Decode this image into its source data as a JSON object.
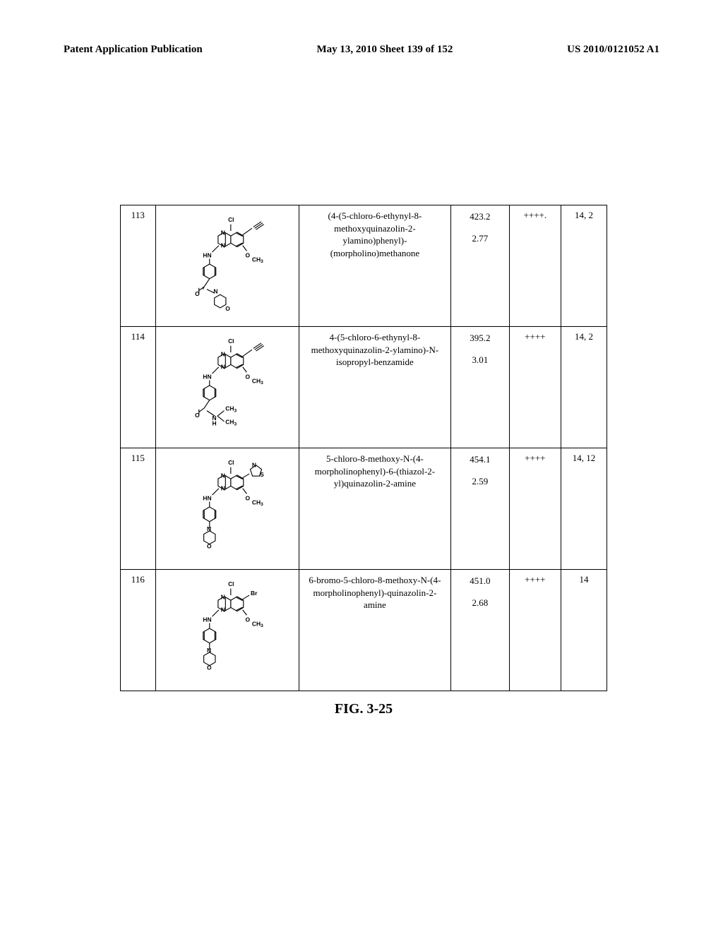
{
  "header": {
    "left": "Patent Application Publication",
    "mid": "May 13, 2010  Sheet 139 of 152",
    "right": "US 2010/0121052 A1"
  },
  "table": {
    "rows": [
      {
        "id": "113",
        "name": "(4-(5-chloro-6-ethynyl-8-methoxyquinazolin-2-ylamino)phenyl)-(morpholino)methanone",
        "mass": "423.2",
        "rt": "2.77",
        "rating": "++++.",
        "ref": "14, 2",
        "struct": "113"
      },
      {
        "id": "114",
        "name": "4-(5-chloro-6-ethynyl-8-methoxyquinazolin-2-ylamino)-N-isopropyl-benzamide",
        "mass": "395.2",
        "rt": "3.01",
        "rating": "++++",
        "ref": "14, 2",
        "struct": "114"
      },
      {
        "id": "115",
        "name": "5-chloro-8-methoxy-N-(4-morpholinophenyl)-6-(thiazol-2-yl)quinazolin-2-amine",
        "mass": "454.1",
        "rt": "2.59",
        "rating": "++++",
        "ref": "14, 12",
        "struct": "115"
      },
      {
        "id": "116",
        "name": "6-bromo-5-chloro-8-methoxy-N-(4-morpholinophenyl)-quinazolin-2-amine",
        "mass": "451.0",
        "rt": "2.68",
        "rating": "++++",
        "ref": "14",
        "struct": "116"
      }
    ]
  },
  "figure_caption": "FIG. 3-25",
  "structure_labels": {
    "cl": "Cl",
    "br": "Br",
    "hn": "HN",
    "n": "N",
    "nh": "N",
    "h": "H",
    "o": "O",
    "s": "S",
    "ch3": "CH",
    "ch3_sub": "3"
  },
  "colors": {
    "text": "#000000",
    "border": "#000000",
    "background": "#ffffff"
  }
}
